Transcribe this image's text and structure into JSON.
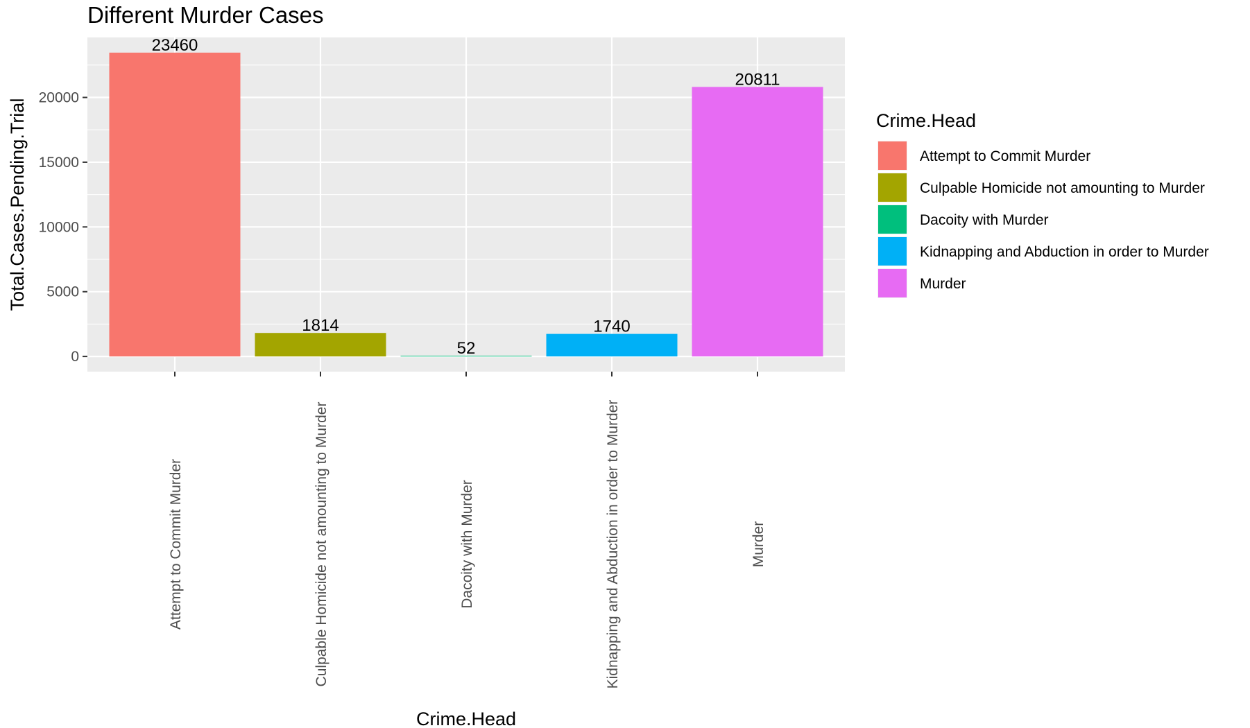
{
  "chart_data": {
    "type": "bar",
    "title": "Different Murder Cases",
    "xlabel": "Crime.Head",
    "ylabel": "Total.Cases.Pending.Trial",
    "categories": [
      "Attempt to Commit Murder",
      "Culpable Homicide not amounting to Murder",
      "Dacoity with Murder",
      "Kidnapping and Abduction in order to Murder",
      "Murder"
    ],
    "values": [
      23460,
      1814,
      52,
      1740,
      20811
    ],
    "data_labels": [
      "23460",
      "1814",
      "52",
      "1740",
      "20811"
    ],
    "colors": [
      "#F8766D",
      "#A3A500",
      "#00BF7D",
      "#00B0F6",
      "#E76BF3"
    ],
    "yticks": [
      0,
      5000,
      10000,
      15000,
      20000
    ],
    "ytick_labels": [
      "0",
      "5000",
      "10000",
      "15000",
      "20000"
    ],
    "ylim": [
      -1173,
      24633
    ],
    "grid": true,
    "legend": {
      "title": "Crime.Head",
      "placement": "right",
      "entries": [
        "Attempt to Commit Murder",
        "Culpable Homicide not amounting to Murder",
        "Dacoity with Murder",
        "Kidnapping and Abduction in order to Murder",
        "Murder"
      ]
    }
  }
}
